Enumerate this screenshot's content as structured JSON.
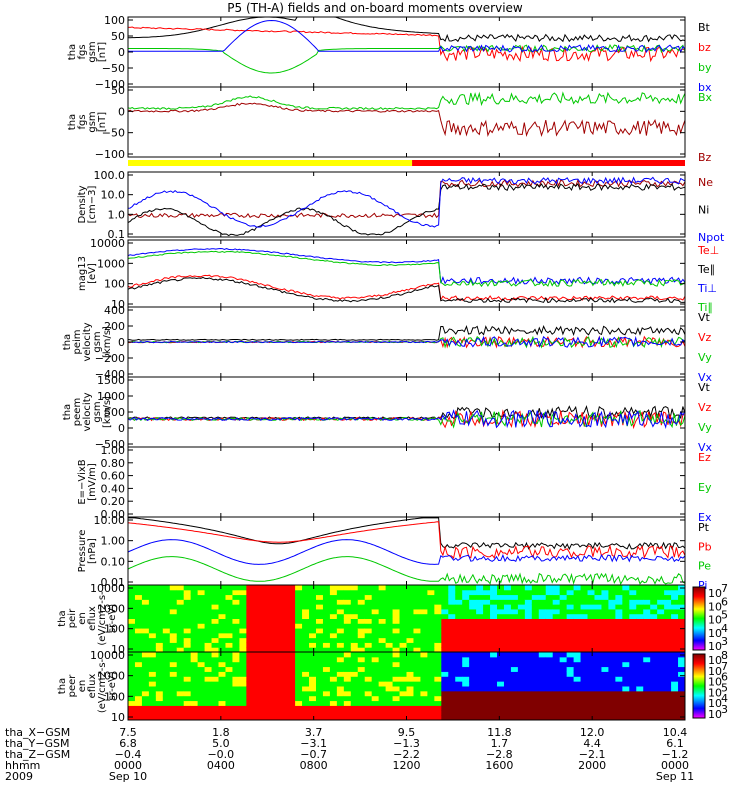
{
  "title": "P5 (TH-A) fields and on-board moments overview",
  "chart_data": {
    "type": "line",
    "title": "P5 (TH-A) fields and on-board moments overview",
    "x": {
      "start": "2009-09-10 00:00",
      "end": "2009-09-11 00:00",
      "units": "hhmm",
      "ticks": [
        "0000",
        "0400",
        "0800",
        "1200",
        "1600",
        "2000",
        "0000"
      ]
    },
    "panels": [
      {
        "id": "fgs",
        "ylabel": [
          "tha",
          "fgs",
          "gsm",
          "[nT]"
        ],
        "ylim": [
          -100,
          100
        ],
        "yticks": [
          "100",
          "50",
          "0",
          "−50",
          "−100"
        ],
        "series": [
          {
            "name": "Bt",
            "color": "#000000"
          },
          {
            "name": "bz",
            "color": "#ff0000"
          },
          {
            "name": "by",
            "color": "#00c800"
          },
          {
            "name": "bx",
            "color": "#0000ff"
          }
        ]
      },
      {
        "id": "fgs_gse",
        "ylabel": [
          "tha",
          "fgs",
          "gsm",
          "[nT]"
        ],
        "ylim": [
          -120,
          60
        ],
        "yticks": [
          "50",
          "0",
          "−50",
          "−100"
        ],
        "series": [
          {
            "name": "Bx",
            "color": "#00c800"
          },
          {
            "name": "Bz",
            "color": "#a00000"
          }
        ]
      },
      {
        "id": "density",
        "ylabel": [
          "Density",
          "[cm−3]"
        ],
        "log": true,
        "ylim": [
          0.1,
          100
        ],
        "yticks": [
          "100.0",
          "10.0",
          "1.0",
          "0.1"
        ],
        "series": [
          {
            "name": "Ne",
            "color": "#a00000"
          },
          {
            "name": "Ni",
            "color": "#000000"
          },
          {
            "name": "Npot",
            "color": "#0000ff"
          }
        ]
      },
      {
        "id": "temp",
        "ylabel": [
          "mag13",
          "[eV]"
        ],
        "log": true,
        "ylim": [
          10,
          10000
        ],
        "yticks": [
          "10000",
          "1000",
          "100",
          "10"
        ],
        "series": [
          {
            "name": "Te⊥",
            "color": "#ff0000"
          },
          {
            "name": "Te∥",
            "color": "#000000"
          },
          {
            "name": "Ti⊥",
            "color": "#0000ff"
          },
          {
            "name": "Ti∥",
            "color": "#00c800"
          }
        ]
      },
      {
        "id": "vi",
        "ylabel": [
          "tha",
          "peim",
          "velocity",
          "gsm",
          "[km/s]"
        ],
        "ylim": [
          -400,
          400
        ],
        "yticks": [
          "400",
          "200",
          "0",
          "−200",
          "−400"
        ],
        "series": [
          {
            "name": "Vt",
            "color": "#000000"
          },
          {
            "name": "Vz",
            "color": "#ff0000"
          },
          {
            "name": "Vy",
            "color": "#00c800"
          },
          {
            "name": "Vx",
            "color": "#0000ff"
          }
        ]
      },
      {
        "id": "ve",
        "ylabel": [
          "tha",
          "peem",
          "velocity",
          "gsm",
          "[km/s]"
        ],
        "ylim": [
          -1000,
          1500
        ],
        "yticks": [
          "1500",
          "1000",
          "500",
          "0",
          "−500"
        ],
        "series": [
          {
            "name": "Vt",
            "color": "#000000"
          },
          {
            "name": "Vz",
            "color": "#ff0000"
          },
          {
            "name": "Vy",
            "color": "#00c800"
          },
          {
            "name": "Vx",
            "color": "#0000ff"
          }
        ]
      },
      {
        "id": "efield",
        "ylabel": [
          "E=−VixB",
          "[mV/m]"
        ],
        "ylim": [
          0,
          1
        ],
        "yticks": [
          "1.00",
          "0.80",
          "0.60",
          "0.40",
          "0.20",
          "0.00"
        ],
        "series": [
          {
            "name": "Ez",
            "color": "#ff0000"
          },
          {
            "name": "Ey",
            "color": "#00c800"
          },
          {
            "name": "Ex",
            "color": "#0000ff"
          }
        ]
      },
      {
        "id": "pressure",
        "ylabel": [
          "Pressure",
          "[nPa]"
        ],
        "log": true,
        "ylim": [
          0.005,
          10
        ],
        "yticks": [
          "10.00",
          "1.00",
          "0.10",
          "0.01"
        ],
        "series": [
          {
            "name": "Pt",
            "color": "#000000"
          },
          {
            "name": "Pb",
            "color": "#ff0000"
          },
          {
            "name": "Pe",
            "color": "#00c800"
          },
          {
            "name": "Pi",
            "color": "#0000ff"
          }
        ]
      },
      {
        "id": "ion_spec",
        "type": "heatmap",
        "ylabel": [
          "tha",
          "peir",
          "en",
          "eflux",
          "(eV/cm2-s-",
          "sr-eV)"
        ],
        "ylim": [
          10,
          20000
        ],
        "yticks": [
          "10000",
          "1000",
          "100",
          "10"
        ],
        "cbar_ticks": [
          "10",
          "10",
          "10",
          "10",
          "10"
        ],
        "cbar_exps": [
          "7",
          "6",
          "5",
          "4",
          "3"
        ]
      },
      {
        "id": "ele_spec",
        "type": "heatmap",
        "ylabel": [
          "tha",
          "peer",
          "en",
          "eflux",
          "(eV/cm2-s-",
          "sr-eV)"
        ],
        "ylim": [
          10,
          20000
        ],
        "yticks": [
          "10000",
          "1000",
          "100",
          "10"
        ],
        "cbar_ticks": [
          "10",
          "10",
          "10",
          "10",
          "10",
          "10"
        ],
        "cbar_exps": [
          "8",
          "7",
          "6",
          "5",
          "4",
          "3"
        ]
      }
    ],
    "ephemeris": {
      "rows": [
        "tha_X−GSM",
        "tha_Y−GSM",
        "tha_Z−GSM",
        "hhmm",
        "2009"
      ],
      "columns": [
        [
          "7.5",
          "6.8",
          "−0.4",
          "0000",
          "Sep 10"
        ],
        [
          "1.8",
          "5.0",
          "−0.0",
          "0400",
          ""
        ],
        [
          "3.7",
          "−3.1",
          "−0.7",
          "0800",
          ""
        ],
        [
          "9.5",
          "−1.3",
          "−2.2",
          "1200",
          ""
        ],
        [
          "11.8",
          "1.7",
          "−2.8",
          "1600",
          ""
        ],
        [
          "12.0",
          "4.4",
          "−2.1",
          "2000",
          ""
        ],
        [
          "10.4",
          "6.1",
          "−1.2",
          "0000",
          "Sep 11"
        ]
      ]
    }
  }
}
